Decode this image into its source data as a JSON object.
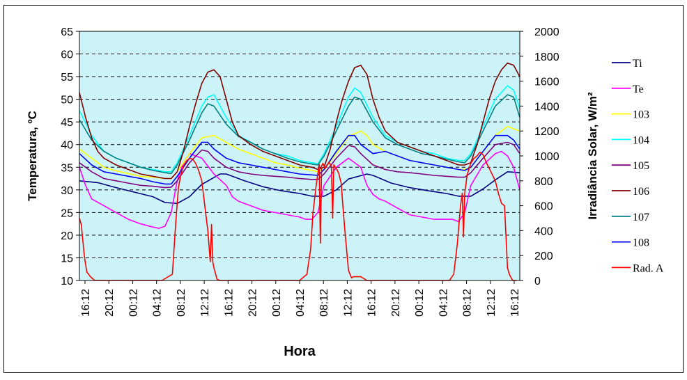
{
  "chart_data": {
    "type": "line",
    "xlabel": "Hora",
    "ylabel": "Temperatura, ºC",
    "y2label": "Irradiância Solar, W/m²",
    "ylim": [
      10,
      65
    ],
    "y2lim": [
      0,
      2000
    ],
    "yticks": [
      10,
      15,
      20,
      25,
      30,
      35,
      40,
      45,
      50,
      55,
      60,
      65
    ],
    "y2ticks": [
      0,
      200,
      400,
      600,
      800,
      1000,
      1200,
      1400,
      1600,
      1800,
      2000
    ],
    "xlim": [
      0,
      72
    ],
    "xtick_labels": [
      "16:12",
      "20:12",
      "00:12",
      "04:12",
      "08:12",
      "12:12",
      "16:12",
      "20:12",
      "00:12",
      "04:12",
      "08:12",
      "12:12",
      "16:12",
      "20:12",
      "00:12",
      "04:12",
      "08:12",
      "12:12",
      "16:12"
    ],
    "grid": "horizontal dashed",
    "legend_position": "right",
    "background": "#ccf4f8",
    "series": [
      {
        "name": "Ti",
        "axis": "left",
        "color": "#000080",
        "x": [
          0,
          3,
          6,
          9,
          12,
          14,
          16,
          18,
          20,
          23,
          24,
          27,
          30,
          33,
          36,
          38,
          40,
          42,
          44,
          47,
          48,
          51,
          54,
          57,
          60,
          62,
          64,
          66,
          68,
          70,
          72
        ],
        "y": [
          32,
          31.6,
          30.5,
          29.5,
          28.5,
          27.2,
          27,
          28.5,
          31.2,
          33.5,
          33.5,
          32,
          30.7,
          29.8,
          29.2,
          28.6,
          28.6,
          30,
          32.4,
          33.5,
          33.2,
          31.5,
          30.5,
          29.8,
          29.2,
          28.6,
          28.6,
          30.2,
          32.2,
          34,
          33.8
        ]
      },
      {
        "name": "Te",
        "axis": "left",
        "color": "#ff00ff",
        "x": [
          0,
          1,
          2,
          4,
          6,
          8,
          10,
          12,
          13,
          14,
          15,
          16,
          17,
          18,
          20,
          22,
          24,
          25,
          26,
          28,
          30,
          32,
          34,
          36,
          37,
          38,
          39,
          40,
          42,
          44,
          46,
          47,
          48,
          49,
          50,
          52,
          54,
          56,
          58,
          60,
          61,
          62,
          63,
          64,
          66,
          68,
          69,
          70,
          71,
          72
        ],
        "y": [
          35,
          31,
          28,
          26.5,
          25,
          23.5,
          22.5,
          21.8,
          21.5,
          22,
          25,
          32,
          36,
          38,
          37,
          33.5,
          31,
          28.5,
          27.5,
          26.5,
          25.5,
          25,
          24.5,
          24,
          23.5,
          23.5,
          25,
          31,
          35,
          37,
          35,
          31,
          29,
          28,
          27.5,
          26,
          24.5,
          24,
          23.5,
          23.5,
          23.5,
          23,
          25,
          31,
          35.5,
          38,
          38.5,
          37.5,
          35,
          30
        ]
      },
      {
        "name": "103",
        "axis": "left",
        "color": "#ffff00",
        "x": [
          0,
          2,
          4,
          6,
          8,
          10,
          12,
          14,
          15,
          16,
          18,
          20,
          22,
          24,
          26,
          28,
          30,
          32,
          34,
          36,
          38,
          39,
          40,
          42,
          44,
          46,
          47,
          48,
          50,
          52,
          54,
          56,
          58,
          60,
          62,
          63,
          64,
          66,
          68,
          70,
          72
        ],
        "y": [
          39,
          37,
          35,
          34.2,
          33.6,
          33,
          32.8,
          32.5,
          32.5,
          34,
          38,
          41.5,
          42,
          40.5,
          39,
          38,
          37,
          36,
          35.5,
          34.8,
          34.3,
          34,
          34.5,
          38,
          41.8,
          43,
          42,
          40,
          38.5,
          37.5,
          36.5,
          36,
          35.5,
          35,
          34.5,
          34.5,
          35,
          38.5,
          42,
          44,
          43
        ]
      },
      {
        "name": "104",
        "axis": "left",
        "color": "#00ffff",
        "x": [
          0,
          2,
          4,
          6,
          8,
          10,
          12,
          14,
          15,
          16,
          18,
          20,
          21,
          22,
          24,
          26,
          28,
          30,
          32,
          34,
          36,
          38,
          39,
          40,
          42,
          44,
          45,
          46,
          48,
          50,
          52,
          54,
          56,
          58,
          60,
          62,
          63,
          64,
          66,
          68,
          70,
          71,
          72
        ],
        "y": [
          47.5,
          42,
          38.5,
          37,
          36,
          35,
          34.5,
          34,
          34,
          36,
          42,
          48.5,
          50.5,
          51,
          46,
          42,
          40.5,
          39,
          38,
          37.5,
          36.5,
          36,
          35.8,
          38,
          44,
          50.5,
          52.5,
          51.5,
          46,
          42,
          40.5,
          39.5,
          38.5,
          38,
          37,
          36.5,
          36.5,
          38,
          44,
          50,
          53,
          52,
          48
        ]
      },
      {
        "name": "105",
        "axis": "left",
        "color": "#800080",
        "x": [
          0,
          2,
          4,
          6,
          8,
          10,
          12,
          14,
          15,
          16,
          18,
          20,
          21,
          22,
          24,
          26,
          28,
          30,
          32,
          34,
          36,
          38,
          39,
          40,
          42,
          44,
          45,
          46,
          48,
          50,
          52,
          54,
          56,
          58,
          60,
          62,
          63,
          64,
          66,
          68,
          70,
          71,
          72
        ],
        "y": [
          36,
          34,
          32.5,
          32,
          31.5,
          31,
          30.8,
          30.5,
          30.6,
          32,
          36,
          38.8,
          38.5,
          37,
          35,
          34,
          33.5,
          33.2,
          33,
          32.8,
          32.5,
          32.3,
          32.3,
          33.5,
          37,
          39.8,
          39.5,
          38,
          35.5,
          34.5,
          34,
          33.8,
          33.5,
          33.2,
          33,
          32.8,
          32.8,
          33.8,
          37,
          40,
          40.5,
          40,
          38
        ]
      },
      {
        "name": "106",
        "axis": "left",
        "color": "#800000",
        "x": [
          0,
          1,
          2,
          3,
          4,
          6,
          8,
          10,
          12,
          14,
          15,
          16,
          17,
          18,
          19,
          20,
          21,
          22,
          23,
          24,
          25,
          26,
          28,
          30,
          32,
          34,
          36,
          38,
          39,
          40,
          41,
          42,
          43,
          44,
          45,
          46,
          47,
          48,
          49,
          50,
          52,
          54,
          56,
          58,
          60,
          62,
          63,
          64,
          65,
          66,
          67,
          68,
          69,
          70,
          71,
          72
        ],
        "y": [
          51.5,
          46,
          41.5,
          38.5,
          37,
          35.5,
          34.5,
          33.5,
          33,
          32.5,
          32.5,
          34,
          38.5,
          44,
          49,
          53.5,
          56,
          56.5,
          55,
          50,
          45,
          42,
          40,
          38.5,
          37.5,
          36.5,
          35.5,
          35,
          34.5,
          35,
          39,
          45,
          50,
          54,
          57,
          57.5,
          55.5,
          50,
          46,
          43,
          40.5,
          39.5,
          38.5,
          37.5,
          36.5,
          35.5,
          35.5,
          36,
          40,
          45,
          50,
          54,
          56.5,
          58,
          57.5,
          55
        ]
      },
      {
        "name": "107",
        "axis": "left",
        "color": "#008080",
        "x": [
          0,
          2,
          4,
          6,
          8,
          10,
          12,
          14,
          15,
          16,
          18,
          20,
          21,
          22,
          24,
          26,
          28,
          30,
          32,
          34,
          36,
          38,
          39,
          40,
          42,
          44,
          45,
          46,
          48,
          50,
          52,
          54,
          56,
          58,
          60,
          62,
          63,
          64,
          66,
          68,
          70,
          71,
          72
        ],
        "y": [
          45.5,
          41,
          38.5,
          37,
          36,
          35,
          34.3,
          33.8,
          33.6,
          35.5,
          41,
          47,
          49,
          48.5,
          44.5,
          41.8,
          40.5,
          39,
          38,
          37,
          36.2,
          35.7,
          35.5,
          37.5,
          43,
          48.5,
          50.5,
          50,
          45,
          41.5,
          40,
          39,
          38,
          37.5,
          36.8,
          36.2,
          36,
          37.5,
          43,
          48.5,
          51,
          50.5,
          46
        ]
      },
      {
        "name": "108",
        "axis": "left",
        "color": "#0000ff",
        "x": [
          0,
          2,
          4,
          6,
          8,
          10,
          12,
          14,
          15,
          16,
          18,
          20,
          21,
          22,
          24,
          26,
          28,
          30,
          32,
          34,
          36,
          38,
          39,
          40,
          42,
          44,
          45,
          46,
          48,
          50,
          52,
          54,
          56,
          58,
          60,
          62,
          63,
          64,
          66,
          68,
          70,
          71,
          72
        ],
        "y": [
          38,
          35.5,
          34,
          33.5,
          33,
          32.5,
          31.8,
          31.3,
          31.3,
          33,
          37,
          40.5,
          40.5,
          39,
          37,
          36,
          35.5,
          35,
          34.5,
          34,
          33.5,
          33.3,
          33.2,
          34.5,
          38.5,
          42,
          42,
          40,
          38,
          38.5,
          37.5,
          36.5,
          36,
          35.5,
          35,
          34.5,
          34.3,
          35,
          38.5,
          42,
          42,
          41,
          39
        ]
      },
      {
        "name": "Rad. A",
        "axis": "right",
        "color": "#ff0000",
        "x": [
          0,
          0.3,
          0.8,
          1.2,
          1.8,
          2.5,
          3,
          13.5,
          15.2,
          15.8,
          16.2,
          16.6,
          17,
          17.5,
          18,
          18.5,
          19,
          19.5,
          20,
          20.5,
          21,
          21.4,
          21.6,
          21.8,
          22,
          22.5,
          23,
          24,
          25,
          26.5,
          28,
          36,
          37.2,
          37.8,
          38.2,
          38.8,
          39.2,
          39.4,
          39.6,
          39.8,
          40.2,
          40.8,
          41.2,
          41.4,
          41.6,
          41.8,
          42,
          42.4,
          42.8,
          43,
          43.4,
          44,
          44.5,
          44.8,
          45,
          45.3,
          46,
          47,
          47.5,
          48,
          48.5,
          49.5,
          55,
          60.5,
          61.2,
          61.8,
          62.3,
          62.6,
          62.8,
          63,
          63.4,
          64,
          64.5,
          65,
          65.5,
          66,
          66.5,
          67,
          67.5,
          68,
          68.5,
          69,
          69.5,
          70,
          70.3,
          70.5,
          70.7,
          70.9,
          71.2,
          71.5
        ],
        "y": [
          500,
          450,
          200,
          70,
          30,
          0,
          0,
          0,
          50,
          500,
          750,
          850,
          920,
          960,
          980,
          975,
          940,
          880,
          800,
          600,
          400,
          150,
          450,
          150,
          100,
          10,
          0,
          0,
          0,
          0,
          0,
          0,
          50,
          250,
          550,
          800,
          930,
          300,
          920,
          940,
          900,
          950,
          920,
          500,
          930,
          910,
          900,
          860,
          780,
          650,
          400,
          80,
          20,
          30,
          30,
          30,
          30,
          0,
          0,
          0,
          0,
          0,
          0,
          0,
          50,
          300,
          600,
          700,
          350,
          700,
          850,
          940,
          980,
          1000,
          1030,
          1010,
          950,
          900,
          850,
          800,
          700,
          620,
          600,
          100,
          50,
          30,
          10,
          0,
          0,
          0
        ]
      }
    ]
  }
}
